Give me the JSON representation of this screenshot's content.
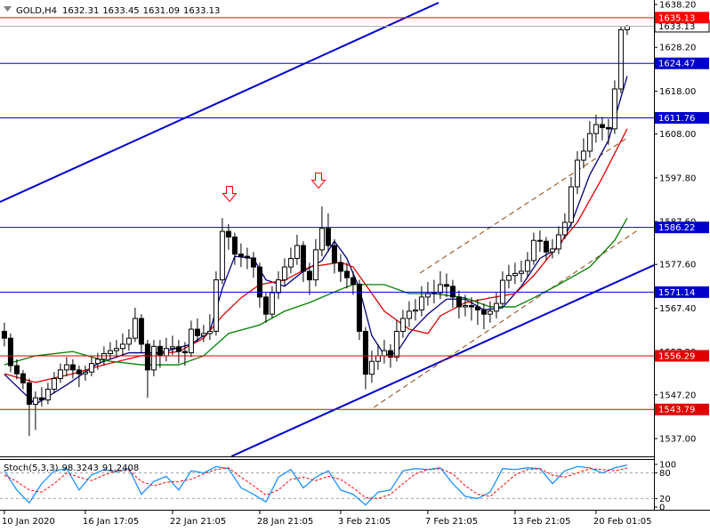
{
  "chart_data": [
    {
      "type": "candlestick",
      "symbol": "GOLD,H4",
      "x": [
        0,
        1,
        2,
        3,
        4,
        5,
        6,
        7,
        8,
        9,
        10,
        11,
        12,
        13,
        14,
        15,
        16,
        17,
        18,
        19,
        20,
        21,
        22,
        23,
        24,
        25,
        26,
        27,
        28,
        29,
        30,
        31,
        32,
        33,
        34,
        35,
        36,
        37,
        38,
        39,
        40,
        41,
        42,
        43,
        44,
        45,
        46,
        47,
        48,
        49,
        50,
        51,
        52,
        53,
        54,
        55,
        56,
        57,
        58,
        59,
        60,
        61,
        62,
        63,
        64,
        65,
        66,
        67,
        68,
        69,
        70,
        71,
        72,
        73,
        74,
        75,
        76,
        77,
        78,
        79,
        80,
        81,
        82,
        83,
        84,
        85,
        86,
        87,
        88,
        89,
        90,
        91,
        92,
        93,
        94,
        95,
        96,
        97,
        98,
        99,
        100
      ],
      "open": [
        1562,
        1560.4,
        1554,
        1552.1,
        1550,
        1545,
        1546.5,
        1546,
        1548.5,
        1551,
        1553,
        1554.2,
        1553,
        1552.1,
        1552.5,
        1554.5,
        1555.5,
        1556.8,
        1557.5,
        1558,
        1559,
        1560.4,
        1565,
        1559,
        1553,
        1558.5,
        1556.3,
        1558,
        1558.4,
        1557.3,
        1557,
        1562.5,
        1561,
        1561.5,
        1562,
        1574,
        1585.3,
        1584,
        1580,
        1579.5,
        1579.1,
        1577,
        1570,
        1566,
        1571,
        1574,
        1577,
        1579,
        1582,
        1576,
        1574,
        1581,
        1586,
        1582,
        1578,
        1576,
        1574.5,
        1573,
        1562,
        1552,
        1555,
        1556.3,
        1557.5,
        1556,
        1562,
        1565,
        1566.7,
        1567,
        1570,
        1570.8,
        1571,
        1572.9,
        1572.5,
        1570,
        1567.7,
        1568,
        1567.7,
        1567,
        1566,
        1566.7,
        1568.5,
        1573.9,
        1575,
        1575.5,
        1576,
        1578.5,
        1583.2,
        1583,
        1580.5,
        1581.2,
        1584.5,
        1587.4,
        1595.7,
        1601.9,
        1604,
        1608.1,
        1610.2,
        1609.5,
        1609.2,
        1618.5,
        1632.31
      ],
      "high": [
        1564,
        1561.5,
        1555.5,
        1553,
        1551,
        1548,
        1549,
        1550,
        1552.5,
        1554.5,
        1556,
        1555.5,
        1554,
        1554,
        1556,
        1557,
        1558.5,
        1559.5,
        1560,
        1561.5,
        1562.5,
        1567.5,
        1566,
        1560,
        1560,
        1560,
        1560.5,
        1561,
        1560,
        1559.5,
        1564.5,
        1565,
        1563.5,
        1566,
        1576,
        1588.4,
        1587,
        1585,
        1582.5,
        1581.5,
        1580.5,
        1578,
        1571,
        1572.5,
        1576,
        1579,
        1581.5,
        1584.5,
        1583,
        1578,
        1583.5,
        1591.1,
        1589.5,
        1583.5,
        1580,
        1578,
        1576,
        1574,
        1563,
        1557.5,
        1559,
        1560,
        1559,
        1564.5,
        1567,
        1569,
        1569.5,
        1572.5,
        1573.5,
        1574,
        1576,
        1575.5,
        1574,
        1571.5,
        1570.5,
        1570,
        1569.5,
        1568.5,
        1569,
        1571,
        1576,
        1577.5,
        1578,
        1578.5,
        1580.5,
        1585,
        1585.5,
        1584,
        1583.5,
        1586.5,
        1589.5,
        1598,
        1604,
        1607,
        1611,
        1612.5,
        1612,
        1611.5,
        1620.5,
        1633,
        1633.45
      ],
      "low": [
        1558.5,
        1552.5,
        1550.8,
        1548.5,
        1537.6,
        1539,
        1544.5,
        1545,
        1547.5,
        1550,
        1551.5,
        1551,
        1549,
        1550.5,
        1551.5,
        1553,
        1554,
        1555.5,
        1556,
        1556.5,
        1557.5,
        1559.5,
        1557,
        1546.5,
        1551.5,
        1553.5,
        1555,
        1556.5,
        1554.5,
        1554,
        1556,
        1559.5,
        1559.5,
        1560,
        1561,
        1573,
        1581,
        1577.5,
        1577,
        1576.5,
        1574.5,
        1567.5,
        1564,
        1565,
        1569.5,
        1572.5,
        1575.5,
        1577.5,
        1573.5,
        1570.5,
        1572.5,
        1579.5,
        1580.5,
        1575.5,
        1573.5,
        1572,
        1570.5,
        1560,
        1548.5,
        1550,
        1553,
        1554.5,
        1553.5,
        1555,
        1560.5,
        1563,
        1564.5,
        1565.5,
        1568,
        1568.5,
        1569.5,
        1570,
        1567.5,
        1565,
        1565.5,
        1564.5,
        1563.5,
        1562.5,
        1564,
        1565,
        1567.5,
        1572,
        1573,
        1573.5,
        1574.5,
        1577.5,
        1580.5,
        1578.5,
        1579,
        1580,
        1583.5,
        1586.5,
        1594,
        1600,
        1602.5,
        1606,
        1606.5,
        1605.5,
        1608,
        1617.5,
        1631.09
      ],
      "close": [
        1560.4,
        1554,
        1552.1,
        1550,
        1545,
        1546.5,
        1546,
        1548.5,
        1551,
        1553,
        1554.2,
        1553,
        1552.1,
        1552.5,
        1554.5,
        1555.5,
        1556.8,
        1557.5,
        1558,
        1559,
        1560.4,
        1565,
        1559,
        1553,
        1558.5,
        1556.3,
        1558,
        1558.4,
        1557.3,
        1557,
        1562.5,
        1561,
        1561.5,
        1562,
        1574,
        1585.3,
        1584,
        1580,
        1579.5,
        1579.1,
        1577,
        1570,
        1566,
        1571,
        1574,
        1577,
        1579,
        1582,
        1576,
        1574,
        1581,
        1586,
        1582,
        1578,
        1576,
        1574.5,
        1573,
        1562,
        1552,
        1555,
        1556.3,
        1557.5,
        1556,
        1562,
        1565,
        1566.7,
        1567,
        1570,
        1570.8,
        1571,
        1572.9,
        1572.5,
        1570,
        1567.7,
        1568,
        1567.7,
        1567,
        1566,
        1566.7,
        1568.5,
        1573.9,
        1575,
        1575.5,
        1576,
        1578.5,
        1583.2,
        1583,
        1580.5,
        1581.2,
        1584.5,
        1587.4,
        1595.7,
        1601.9,
        1604,
        1608.1,
        1610.2,
        1609.5,
        1609.2,
        1618.5,
        1632.31,
        1633.13
      ],
      "overlays": [
        {
          "color": "#000080",
          "x": [
            0,
            5,
            10,
            15,
            20,
            25,
            30,
            33,
            35,
            37,
            40,
            42,
            45,
            48,
            51,
            53,
            55,
            57,
            59,
            61,
            63,
            65,
            68,
            71,
            74,
            77,
            80,
            83,
            86,
            89,
            91,
            94,
            97,
            100
          ],
          "values": [
            1552,
            1545,
            1549.5,
            1554.5,
            1557,
            1557,
            1559,
            1562,
            1572,
            1579.5,
            1579,
            1574,
            1572.5,
            1576,
            1578.5,
            1583,
            1579,
            1572,
            1561,
            1556.5,
            1557,
            1561.5,
            1566,
            1569.5,
            1569.5,
            1567,
            1567.5,
            1572.5,
            1579,
            1581.5,
            1587,
            1598.5,
            1606.5,
            1621.5
          ]
        },
        {
          "color": "#e00000",
          "x": [
            0,
            5,
            11,
            16,
            22,
            28,
            32,
            35,
            38,
            41,
            45,
            49,
            54,
            56,
            58,
            61,
            65,
            68,
            70,
            74,
            78,
            82,
            85,
            89,
            92,
            96,
            100
          ],
          "values": [
            1552.1,
            1550.1,
            1552.1,
            1554.2,
            1556.3,
            1557.3,
            1560.4,
            1565.6,
            1569.8,
            1572.9,
            1573.9,
            1577,
            1578.1,
            1577,
            1572.9,
            1566.7,
            1562.5,
            1561.5,
            1565.6,
            1568.7,
            1569.8,
            1570.8,
            1575,
            1582.2,
            1587.4,
            1597.8,
            1609.2
          ]
        },
        {
          "color": "#008000",
          "x": [
            0,
            5,
            11,
            16,
            22,
            28,
            32,
            36,
            41,
            45,
            49,
            54,
            56,
            61,
            65,
            69,
            74,
            78,
            82,
            85,
            89,
            94,
            98,
            100
          ],
          "values": [
            1554.2,
            1556.3,
            1557.3,
            1555.2,
            1554.2,
            1554.2,
            1556.3,
            1561.5,
            1563.5,
            1566.7,
            1568.7,
            1571.8,
            1572.9,
            1572.9,
            1570.8,
            1570.8,
            1569.8,
            1567.7,
            1567.7,
            1569.8,
            1572.9,
            1577,
            1583.2,
            1588.4
          ]
        }
      ],
      "hlines": [
        {
          "value": 1635.13,
          "color": "#ff0000"
        },
        {
          "value": 1624.47,
          "color": "#0000cd"
        },
        {
          "value": 1611.76,
          "color": "#0000cd"
        },
        {
          "value": 1586.22,
          "color": "#0000cd"
        },
        {
          "value": 1571.14,
          "color": "#0000cd"
        },
        {
          "value": 1556.29,
          "color": "#e00000"
        },
        {
          "value": 1543.79,
          "color": "#e00000"
        }
      ],
      "xlim": [
        -0.7,
        104.3
      ],
      "xticks": [
        {
          "value": 0,
          "label": "10 Jan 2020"
        },
        {
          "value": 13,
          "label": "16 Jan 17:05"
        },
        {
          "value": 27,
          "label": "22 Jan 21:05"
        },
        {
          "value": 41,
          "label": "28 Jan 21:05"
        },
        {
          "value": 54,
          "label": "3 Feb 21:05"
        },
        {
          "value": 68,
          "label": "7 Feb 21:05"
        },
        {
          "value": 82,
          "label": "13 Feb 21:05"
        },
        {
          "value": 95,
          "label": "20 Feb 01:05"
        }
      ],
      "ylim": [
        1532.85,
        1639.24
      ],
      "yticks": [
        {
          "value": 1638.2,
          "label": "1638.20"
        },
        {
          "value": 1628.2,
          "label": "1628.20"
        },
        {
          "value": 1618,
          "label": "1618.00"
        },
        {
          "value": 1608,
          "label": "1608.00"
        },
        {
          "value": 1597.8,
          "label": "1597.80"
        },
        {
          "value": 1587.6,
          "label": "1587.60"
        },
        {
          "value": 1577.6,
          "label": "1577.60"
        },
        {
          "value": 1567.4,
          "label": "1567.40"
        },
        {
          "value": 1557.2,
          "label": "1557.20"
        },
        {
          "value": 1547.2,
          "label": "1547.20"
        },
        {
          "value": 1537,
          "label": "1537.00"
        }
      ]
    },
    {
      "type": "line",
      "title": "Stoch(5,3,3)",
      "series": [
        {
          "color": "#1e90ff",
          "style": "solid",
          "x": [
            0,
            2,
            4,
            6,
            8,
            10,
            12,
            14,
            16,
            18,
            20,
            22,
            24,
            26,
            28,
            30,
            32,
            34,
            36,
            38,
            40,
            42,
            44,
            46,
            48,
            50,
            52,
            54,
            56,
            58,
            60,
            62,
            64,
            66,
            68,
            70,
            72,
            74,
            76,
            78,
            80,
            82,
            84,
            86,
            88,
            90,
            92,
            94,
            96,
            98,
            100
          ],
          "values": [
            85,
            40,
            10,
            55,
            85,
            90,
            40,
            75,
            88,
            82,
            90,
            30,
            60,
            72,
            40,
            85,
            80,
            95,
            90,
            45,
            30,
            12,
            70,
            88,
            45,
            70,
            85,
            40,
            30,
            5,
            35,
            40,
            85,
            90,
            88,
            92,
            55,
            25,
            20,
            35,
            90,
            88,
            92,
            90,
            55,
            85,
            95,
            92,
            80,
            92,
            98.3243
          ]
        },
        {
          "color": "#ff0000",
          "style": "dashed",
          "x": [
            0,
            2,
            4,
            6,
            8,
            10,
            12,
            14,
            16,
            18,
            20,
            22,
            24,
            26,
            28,
            30,
            32,
            34,
            36,
            38,
            40,
            42,
            44,
            46,
            48,
            50,
            52,
            54,
            56,
            58,
            60,
            62,
            64,
            66,
            68,
            70,
            72,
            74,
            76,
            78,
            80,
            82,
            84,
            86,
            88,
            90,
            92,
            94,
            96,
            98,
            100
          ],
          "values": [
            75,
            60,
            40,
            35,
            55,
            80,
            70,
            62,
            75,
            85,
            86,
            60,
            50,
            58,
            60,
            65,
            78,
            88,
            92,
            70,
            50,
            28,
            40,
            65,
            70,
            62,
            72,
            65,
            45,
            22,
            20,
            30,
            55,
            78,
            88,
            90,
            78,
            50,
            30,
            25,
            50,
            75,
            88,
            90,
            75,
            70,
            80,
            90,
            88,
            85,
            91.2408
          ]
        }
      ],
      "levels": [
        20,
        80
      ],
      "xlim": [
        -0.7,
        104.3
      ],
      "ylim": [
        0,
        100
      ],
      "yticks": [
        0,
        20,
        80,
        100
      ]
    }
  ]
}
